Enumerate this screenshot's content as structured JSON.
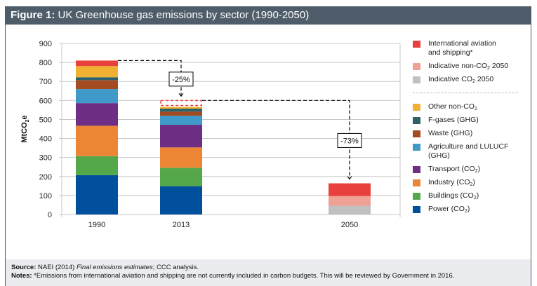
{
  "figure": {
    "title_prefix": "Figure 1:",
    "title_text": " UK Greenhouse gas emissions by sector (1990-2050)"
  },
  "footer": {
    "source_label": "Source:",
    "source_pre": " NAEI (2014) ",
    "source_italic": "Final emissions estimates",
    "source_post": "; CCC analysis.",
    "notes_label": "Notes:",
    "notes_text": " *Emissions from international aviation and shipping are not currently included in carbon budgets. This will be reviewed by Government in 2016."
  },
  "chart_data": {
    "type": "bar",
    "stacked": true,
    "title": "UK Greenhouse gas emissions by sector (1990-2050)",
    "xlabel": "",
    "ylabel": "MtCO2e",
    "ylabel_main": "MtCO",
    "ylabel_sub": "2",
    "ylabel_tail": "e",
    "ylim": [
      0,
      900
    ],
    "yticks": [
      0,
      100,
      200,
      300,
      400,
      500,
      600,
      700,
      800,
      900
    ],
    "grid": true,
    "legend_position": "right",
    "categories": [
      "1990",
      "2013",
      "2050"
    ],
    "series": [
      {
        "name": "Power (CO2)",
        "label_main": "Power (CO",
        "label_sub": "2",
        "label_tail": ")",
        "color": "#00509e",
        "values": [
          207,
          149,
          0
        ]
      },
      {
        "name": "Buildings (CO2)",
        "label_main": "Buildings (CO",
        "label_sub": "2",
        "label_tail": ")",
        "color": "#54a84a",
        "values": [
          100,
          97,
          0
        ]
      },
      {
        "name": "Industry (CO2)",
        "label_main": "Industry (CO",
        "label_sub": "2",
        "label_tail": ")",
        "color": "#ec8534",
        "values": [
          160,
          107,
          0
        ]
      },
      {
        "name": "Transport (CO2)",
        "label_main": "Transport (CO",
        "label_sub": "2",
        "label_tail": ")",
        "color": "#6d2e84",
        "values": [
          119,
          119,
          0
        ]
      },
      {
        "name": "Agriculture and LULUCF (GHG)",
        "label_main": "Agriculture and LULUCF",
        "label_line2": "(GHG)",
        "color": "#3f9ac9",
        "values": [
          74,
          48,
          0
        ]
      },
      {
        "name": "Waste (GHG)",
        "label_main": "Waste (GHG)",
        "color": "#a54b22",
        "values": [
          47,
          21,
          0
        ]
      },
      {
        "name": "F-gases (GHG)",
        "label_main": "F-gases (GHG)",
        "color": "#2c6268",
        "values": [
          15,
          16,
          0
        ]
      },
      {
        "name": "Other non-CO2",
        "label_main": "Other non-CO",
        "label_sub": "2",
        "color": "#f0b132",
        "values": [
          59,
          9,
          0
        ]
      },
      {
        "name": "Indicative CO2 2050",
        "label_main": "Indicative CO",
        "label_sub": "2",
        "label_tail": " 2050",
        "color": "#c0c0c0",
        "values": [
          0,
          0,
          46
        ]
      },
      {
        "name": "Indicative non-CO2 2050",
        "label_main": "Indicative non-CO",
        "label_sub": "2",
        "label_tail": " 2050",
        "color": "#f0a196",
        "values": [
          0,
          0,
          51
        ]
      },
      {
        "name": "International aviation and shipping*",
        "label_main": "International aviation",
        "label_line2": "and shipping*",
        "color": "#e8403c",
        "values": [
          29,
          34,
          67
        ],
        "dashed_outline_for": [
          "2013"
        ]
      }
    ],
    "legend_order_top": [
      "International aviation and shipping*",
      "Indicative non-CO2 2050",
      "Indicative CO2 2050"
    ],
    "legend_order_bottom": [
      "Other non-CO2",
      "F-gases (GHG)",
      "Waste (GHG)",
      "Agriculture and LULUCF (GHG)",
      "Transport (CO2)",
      "Industry (CO2)",
      "Buildings (CO2)",
      "Power (CO2)"
    ],
    "annotations": [
      {
        "text": "-25%",
        "from": "1990",
        "to": "2013"
      },
      {
        "text": "-73%",
        "from": "2013",
        "to": "2050"
      }
    ]
  }
}
